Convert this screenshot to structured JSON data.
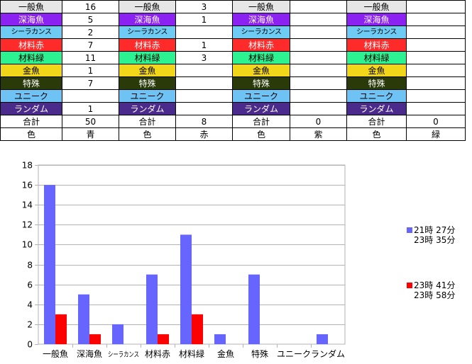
{
  "colors": {
    "一般魚": "#e6e6e6",
    "深海魚": "#8b22f2",
    "シーラカンス": "#6ecbf4",
    "材料赤": "#ff2a2a",
    "材料緑": "#2cf291",
    "金魚": "#f2d61a",
    "特殊": "#2a3a08",
    "ユニーク": "#6ec2f4",
    "ランダム": "#4a2a8a",
    "series_blue": "#6666ff",
    "series_red": "#ff0000"
  },
  "table": {
    "labels": [
      "一般魚",
      "深海魚",
      "シーラカンス",
      "材料赤",
      "材料緑",
      "金魚",
      "特殊",
      "ユニーク",
      "ランダム"
    ],
    "groups": [
      {
        "values": [
          "16",
          "5",
          "2",
          "7",
          "11",
          "1",
          "7",
          "",
          "1"
        ],
        "total_label": "合計",
        "total": "50",
        "color_label": "色",
        "color": "青"
      },
      {
        "values": [
          "3",
          "1",
          "",
          "1",
          "3",
          "",
          "",
          "",
          ""
        ],
        "total_label": "合計",
        "total": "8",
        "color_label": "色",
        "color": "赤"
      },
      {
        "values": [
          "",
          "",
          "",
          "",
          "",
          "",
          "",
          "",
          ""
        ],
        "total_label": "合計",
        "total": "0",
        "color_label": "色",
        "color": "紫"
      },
      {
        "values": [
          "",
          "",
          "",
          "",
          "",
          "",
          "",
          "",
          ""
        ],
        "total_label": "合計",
        "total": "0",
        "color_label": "色",
        "color": "緑"
      }
    ]
  },
  "chart_data": {
    "type": "bar",
    "categories": [
      "一般魚",
      "深海魚",
      "シーラカンス",
      "材料赤",
      "材料緑",
      "金魚",
      "特殊",
      "ユニーク",
      "ランダム"
    ],
    "series": [
      {
        "name": "21時 27分\n23時 35分",
        "values": [
          16,
          5,
          2,
          7,
          11,
          1,
          7,
          0,
          1
        ]
      },
      {
        "name": "23時 41分\n23時 58分",
        "values": [
          3,
          1,
          0,
          1,
          3,
          0,
          0,
          0,
          0
        ]
      }
    ],
    "ylim": [
      0,
      18
    ],
    "yticks": [
      0,
      2,
      4,
      6,
      8,
      10,
      12,
      14,
      16,
      18
    ],
    "grid": true,
    "legend": "right"
  },
  "legend": [
    {
      "line1": "21時 27分",
      "line2": "23時 35分"
    },
    {
      "line1": "23時 41分",
      "line2": "23時 58分"
    }
  ]
}
